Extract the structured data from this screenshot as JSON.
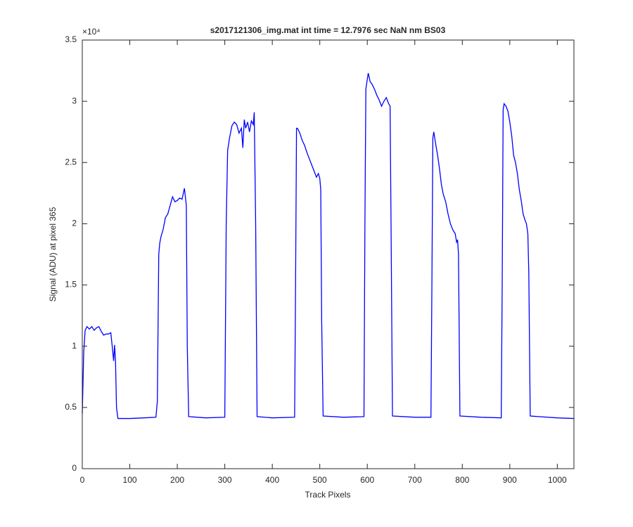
{
  "chart_data": {
    "type": "line",
    "title": "s2017121306_img.mat int time = 12.7976 sec  NaN nm BS03",
    "x_label": "Track Pixels",
    "y_label": "Signal (ADU) at pixel 365",
    "y_exponent": "×10⁴",
    "x": [
      0,
      3,
      6,
      10,
      15,
      20,
      25,
      30,
      35,
      40,
      45,
      50,
      55,
      60,
      63,
      66,
      68,
      70,
      72,
      75,
      100,
      130,
      155,
      158,
      161,
      163,
      166,
      170,
      175,
      180,
      185,
      190,
      195,
      200,
      205,
      210,
      215,
      217,
      219,
      221,
      224,
      260,
      300,
      303,
      306,
      310,
      315,
      320,
      325,
      330,
      335,
      338,
      341,
      344,
      348,
      352,
      356,
      360,
      362,
      365,
      368,
      400,
      447,
      449,
      451,
      453,
      458,
      463,
      468,
      473,
      478,
      483,
      488,
      493,
      497,
      500,
      502,
      504,
      507,
      550,
      593,
      595,
      597,
      600,
      602,
      606,
      610,
      615,
      620,
      625,
      630,
      635,
      640,
      645,
      648,
      650,
      653,
      700,
      734,
      736,
      738,
      740,
      744,
      748,
      752,
      756,
      760,
      765,
      770,
      775,
      780,
      785,
      788,
      790,
      792,
      795,
      840,
      882,
      884,
      886,
      888,
      892,
      896,
      900,
      904,
      908,
      912,
      916,
      920,
      924,
      928,
      932,
      935,
      938,
      940,
      943,
      1000,
      1035
    ],
    "series": [
      {
        "color": "#0000ff",
        "values": [
          4500,
          9500,
          11300,
          11600,
          11400,
          11600,
          11300,
          11500,
          11600,
          11200,
          10900,
          11000,
          11000,
          11100,
          10000,
          8800,
          10100,
          8700,
          5000,
          4100,
          4100,
          4150,
          4200,
          5500,
          17500,
          18400,
          19000,
          19500,
          20500,
          20800,
          21500,
          22200,
          21800,
          21900,
          22100,
          22000,
          22900,
          22200,
          21500,
          10000,
          4250,
          4150,
          4200,
          20000,
          26000,
          27000,
          28000,
          28300,
          28100,
          27400,
          27800,
          26200,
          28500,
          27800,
          28300,
          27500,
          28400,
          28100,
          29100,
          20000,
          4250,
          4150,
          4200,
          15000,
          27800,
          27800,
          27400,
          26800,
          26400,
          25800,
          25300,
          24800,
          24300,
          23800,
          24100,
          23700,
          22800,
          12000,
          4300,
          4200,
          4250,
          20000,
          31000,
          31800,
          32300,
          31600,
          31400,
          31000,
          30500,
          30100,
          29600,
          30000,
          30300,
          29800,
          29600,
          20000,
          4300,
          4200,
          4200,
          15000,
          27000,
          27500,
          26500,
          25600,
          24500,
          23200,
          22400,
          21800,
          20800,
          20000,
          19500,
          19200,
          18500,
          18700,
          17500,
          4300,
          4200,
          4150,
          15000,
          29300,
          29800,
          29600,
          29200,
          28300,
          27200,
          25600,
          25000,
          24100,
          22800,
          21900,
          20800,
          20300,
          20000,
          19200,
          16000,
          4300,
          4150,
          4100
        ]
      }
    ],
    "xlim": [
      0,
      1035
    ],
    "ylim": [
      0,
      35000
    ],
    "xticks": [
      0,
      100,
      200,
      300,
      400,
      500,
      600,
      700,
      800,
      900,
      1000
    ],
    "yticks": [
      0,
      {
        "value": 5000,
        "label": "0.5"
      },
      {
        "value": 10000,
        "label": "1"
      },
      {
        "value": 15000,
        "label": "1.5"
      },
      {
        "value": 20000,
        "label": "2"
      },
      {
        "value": 25000,
        "label": "2.5"
      },
      {
        "value": 30000,
        "label": "3"
      },
      {
        "value": 35000,
        "label": "3.5"
      }
    ],
    "grid": false
  }
}
